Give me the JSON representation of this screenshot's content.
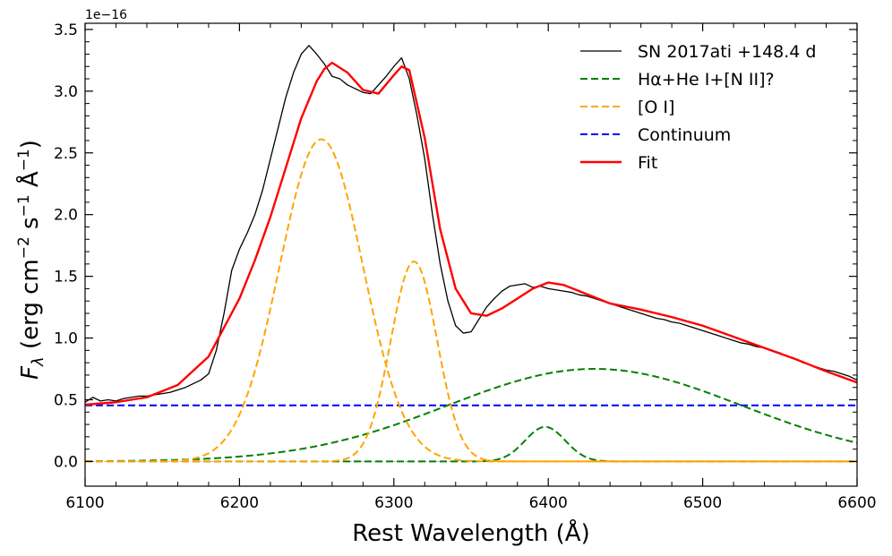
{
  "chart_data": {
    "type": "line",
    "xlabel": "Rest Wavelength (Å)",
    "ylabel": {
      "base": "F",
      "sub": "λ",
      "rest": " (erg cm",
      "e1": "−2",
      "mid": " s",
      "e2": "−1",
      "ang": " Å",
      "e3": "−1",
      "end": ")"
    },
    "y_offset_label": "1e−16",
    "xlim": [
      6100,
      6600
    ],
    "ylim": [
      -0.2,
      3.55
    ],
    "x_ticks": [
      6100,
      6200,
      6300,
      6400,
      6500,
      6600
    ],
    "x_tick_labels": [
      "6100",
      "6200",
      "6300",
      "6400",
      "6500",
      "6600"
    ],
    "y_ticks": [
      0.0,
      0.5,
      1.0,
      1.5,
      2.0,
      2.5,
      3.0,
      3.5
    ],
    "y_tick_labels": [
      "0.0",
      "0.5",
      "1.0",
      "1.5",
      "2.0",
      "2.5",
      "3.0",
      "3.5"
    ],
    "legend_position": "top-right",
    "series": [
      {
        "name": "SN 2017ati +148.4 d",
        "color": "#000000",
        "style": "solid",
        "x": [
          6100,
          6105,
          6110,
          6115,
          6120,
          6125,
          6130,
          6135,
          6140,
          6145,
          6150,
          6155,
          6160,
          6165,
          6170,
          6175,
          6180,
          6185,
          6190,
          6195,
          6200,
          6205,
          6210,
          6215,
          6220,
          6225,
          6230,
          6235,
          6240,
          6245,
          6250,
          6255,
          6260,
          6265,
          6270,
          6275,
          6280,
          6285,
          6290,
          6295,
          6300,
          6305,
          6310,
          6315,
          6320,
          6325,
          6330,
          6335,
          6340,
          6345,
          6350,
          6355,
          6360,
          6365,
          6370,
          6375,
          6380,
          6385,
          6390,
          6395,
          6400,
          6405,
          6410,
          6415,
          6420,
          6425,
          6430,
          6435,
          6440,
          6445,
          6450,
          6455,
          6460,
          6465,
          6470,
          6475,
          6480,
          6485,
          6490,
          6495,
          6500,
          6505,
          6510,
          6515,
          6520,
          6525,
          6530,
          6535,
          6540,
          6545,
          6550,
          6555,
          6560,
          6565,
          6570,
          6575,
          6580,
          6585,
          6590,
          6595,
          6600
        ],
        "y": [
          0.48,
          0.52,
          0.49,
          0.5,
          0.49,
          0.51,
          0.52,
          0.53,
          0.53,
          0.54,
          0.55,
          0.56,
          0.58,
          0.6,
          0.63,
          0.66,
          0.71,
          0.9,
          1.2,
          1.55,
          1.72,
          1.85,
          2.0,
          2.2,
          2.45,
          2.7,
          2.95,
          3.15,
          3.3,
          3.37,
          3.3,
          3.22,
          3.12,
          3.1,
          3.05,
          3.02,
          2.99,
          2.98,
          3.05,
          3.12,
          3.2,
          3.27,
          3.1,
          2.8,
          2.45,
          2.0,
          1.6,
          1.3,
          1.1,
          1.04,
          1.05,
          1.15,
          1.25,
          1.32,
          1.38,
          1.42,
          1.43,
          1.44,
          1.41,
          1.42,
          1.4,
          1.39,
          1.38,
          1.37,
          1.35,
          1.34,
          1.32,
          1.3,
          1.28,
          1.26,
          1.24,
          1.22,
          1.2,
          1.18,
          1.16,
          1.15,
          1.13,
          1.12,
          1.1,
          1.08,
          1.06,
          1.04,
          1.02,
          1.0,
          0.98,
          0.96,
          0.95,
          0.93,
          0.92,
          0.9,
          0.88,
          0.85,
          0.83,
          0.8,
          0.78,
          0.76,
          0.74,
          0.73,
          0.71,
          0.69,
          0.66
        ]
      },
      {
        "name": "Hα+He I+[N II]?",
        "color": "#008000",
        "style": "dashed",
        "components": [
          {
            "kind": "gaussian",
            "amplitude": 0.75,
            "center": 6430,
            "sigma": 95
          },
          {
            "kind": "gaussian",
            "amplitude": 0.28,
            "center": 6398,
            "sigma": 13
          }
        ]
      },
      {
        "name": "[O I]",
        "color": "#FFA500",
        "style": "dashed",
        "components": [
          {
            "kind": "gaussian",
            "amplitude": 2.61,
            "center": 6253,
            "sigma": 27
          },
          {
            "kind": "gaussian",
            "amplitude": 1.62,
            "center": 6313,
            "sigma": 15
          }
        ]
      },
      {
        "name": "Continuum",
        "color": "#0000FF",
        "style": "dashed",
        "constant": 0.455
      },
      {
        "name": "Fit",
        "color": "#FF0000",
        "style": "solid",
        "x": [
          6100,
          6120,
          6140,
          6160,
          6180,
          6200,
          6210,
          6220,
          6230,
          6240,
          6250,
          6255,
          6260,
          6270,
          6280,
          6290,
          6300,
          6305,
          6310,
          6320,
          6330,
          6340,
          6350,
          6360,
          6370,
          6380,
          6390,
          6400,
          6410,
          6420,
          6440,
          6460,
          6480,
          6500,
          6520,
          6540,
          6560,
          6580,
          6600
        ],
        "y": [
          0.46,
          0.48,
          0.52,
          0.62,
          0.85,
          1.32,
          1.63,
          1.98,
          2.38,
          2.78,
          3.08,
          3.18,
          3.23,
          3.15,
          3.01,
          2.98,
          3.13,
          3.2,
          3.17,
          2.62,
          1.88,
          1.4,
          1.2,
          1.18,
          1.24,
          1.32,
          1.4,
          1.45,
          1.43,
          1.38,
          1.28,
          1.23,
          1.17,
          1.1,
          1.01,
          0.92,
          0.83,
          0.73,
          0.64
        ]
      }
    ]
  }
}
